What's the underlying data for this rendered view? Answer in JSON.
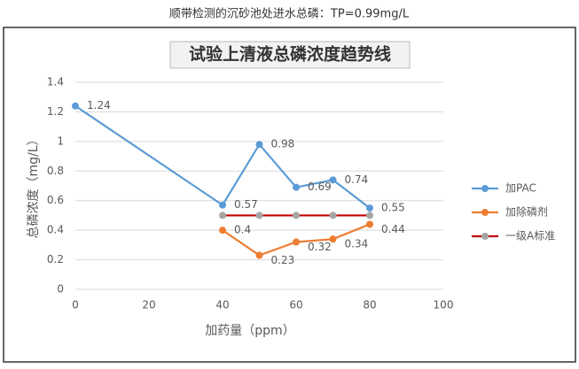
{
  "caption": "顺带检测的沉砂池处进水总磷：TP=0.99mg/L",
  "chart_data": {
    "type": "line",
    "title": "试验上清液总磷浓度趋势线",
    "x_label": "加药量（ppm）",
    "y_label": "总磷浓度（mg/L）",
    "xlim": [
      0,
      100
    ],
    "xticks": [
      0,
      20,
      40,
      60,
      80,
      100
    ],
    "ylim": [
      0,
      1.4
    ],
    "yticks": [
      0,
      0.2,
      0.4,
      0.6,
      0.8,
      1,
      1.2,
      1.4
    ],
    "grid": true,
    "legend": "right",
    "series": [
      {
        "name": "加PAC",
        "color": "#5b9bd5",
        "marker_color": "#5b9bd5",
        "show_labels": true,
        "x": [
          0,
          40,
          50,
          60,
          70,
          80
        ],
        "values": [
          1.24,
          0.57,
          0.98,
          0.69,
          0.74,
          0.55
        ]
      },
      {
        "name": "加除磷剂",
        "color": "#ed7d31",
        "marker_color": "#ed7d31",
        "show_labels": true,
        "x": [
          40,
          50,
          60,
          70,
          80
        ],
        "values": [
          0.4,
          0.23,
          0.32,
          0.34,
          0.44
        ]
      },
      {
        "name": "一级A标准",
        "color": "#c00000",
        "marker_color": "#a5a5a5",
        "show_labels": false,
        "x": [
          40,
          50,
          60,
          70,
          80
        ],
        "values": [
          0.5,
          0.5,
          0.5,
          0.5,
          0.5
        ]
      }
    ]
  }
}
